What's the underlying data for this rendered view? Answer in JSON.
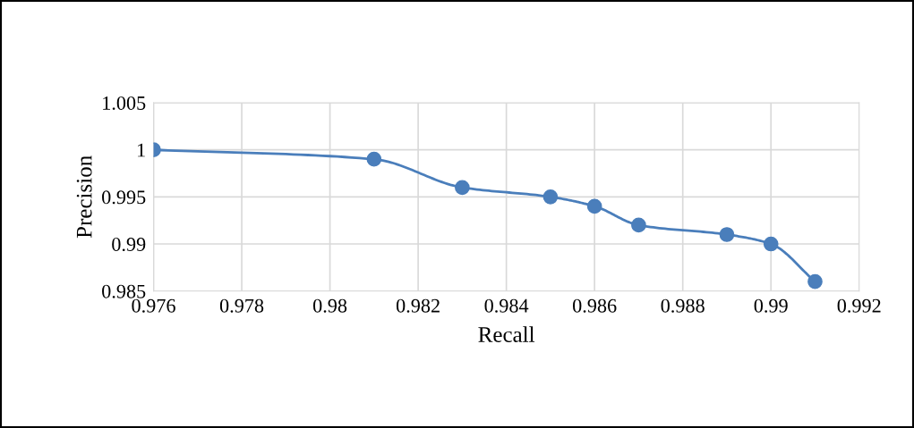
{
  "chart_data": {
    "type": "line",
    "xlabel": "Recall",
    "ylabel": "Precision",
    "x": [
      0.976,
      0.981,
      0.983,
      0.985,
      0.986,
      0.987,
      0.989,
      0.99,
      0.991
    ],
    "series": [
      {
        "color": "#4a7ebb",
        "values": [
          1,
          0.999,
          0.996,
          0.995,
          0.994,
          0.992,
          0.991,
          0.99,
          0.986
        ]
      }
    ],
    "xlim": [
      0.976,
      0.992
    ],
    "xticks": [
      0.976,
      0.978,
      0.98,
      0.982,
      0.984,
      0.986,
      0.988,
      0.99,
      0.992
    ],
    "ylim": [
      0.985,
      1.005
    ],
    "yticks": [
      0.985,
      0.99,
      0.995,
      1,
      1.005
    ],
    "grid": true,
    "marker": "circle",
    "line_style": "solid"
  }
}
